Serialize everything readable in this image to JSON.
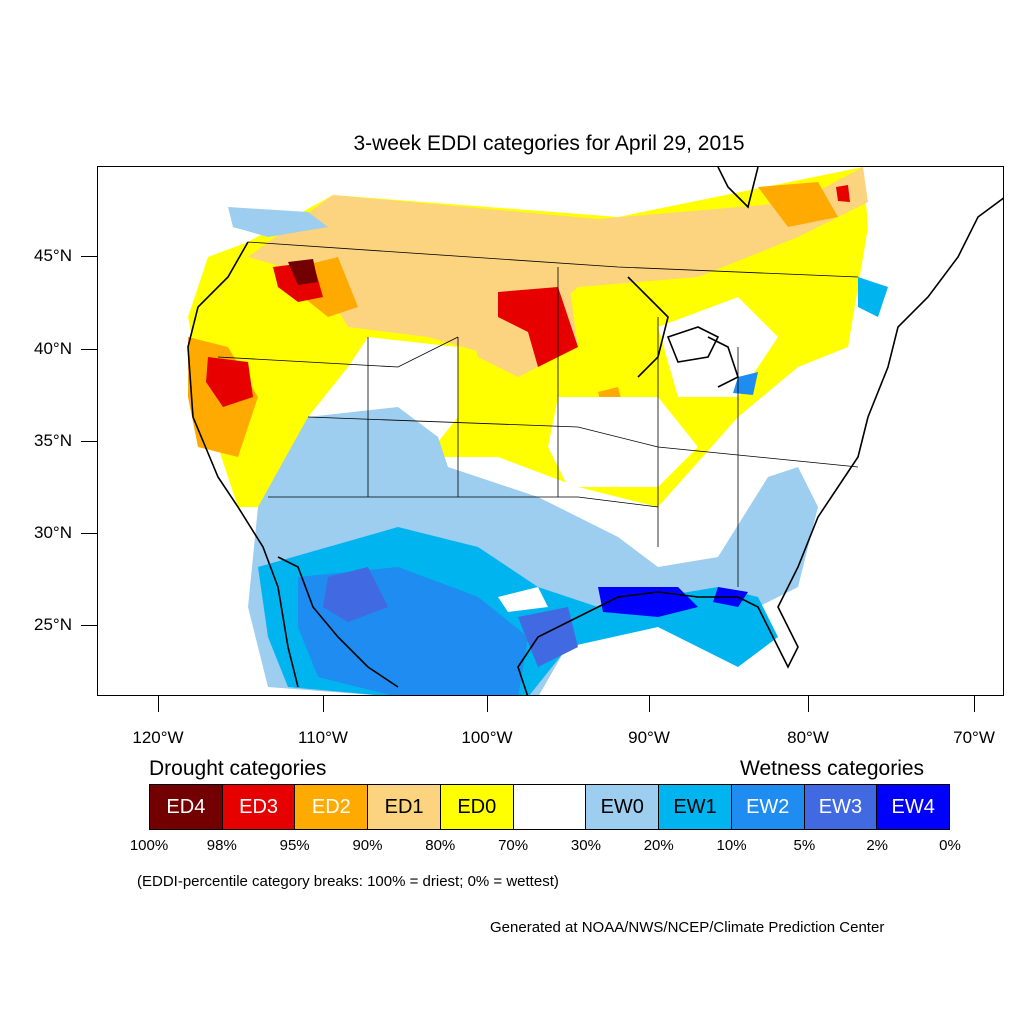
{
  "title": "3-week EDDI categories for April 29, 2015",
  "latitude_labels": [
    "45°N",
    "40°N",
    "35°N",
    "30°N",
    "25°N"
  ],
  "longitude_labels": [
    "120°W",
    "110°W",
    "100°W",
    "90°W",
    "80°W",
    "70°W"
  ],
  "legend": {
    "drought_heading": "Drought categories",
    "wetness_heading": "Wetness categories",
    "categories": [
      {
        "label": "ED4",
        "color": "#730000",
        "text_color": "#ffffff"
      },
      {
        "label": "ED3",
        "color": "#e60000",
        "text_color": "#ffffff"
      },
      {
        "label": "ED2",
        "color": "#ffaa00",
        "text_color": "#ffffff"
      },
      {
        "label": "ED1",
        "color": "#fcd37f",
        "text_color": "#000000"
      },
      {
        "label": "ED0",
        "color": "#ffff00",
        "text_color": "#000000"
      },
      {
        "label": "",
        "color": "#ffffff",
        "text_color": "#000000"
      },
      {
        "label": "EW0",
        "color": "#9dcdef",
        "text_color": "#000000"
      },
      {
        "label": "EW1",
        "color": "#00b4f0",
        "text_color": "#000000"
      },
      {
        "label": "EW2",
        "color": "#1e8cf0",
        "text_color": "#ffffff"
      },
      {
        "label": "EW3",
        "color": "#4169e1",
        "text_color": "#ffffff"
      },
      {
        "label": "EW4",
        "color": "#0000ff",
        "text_color": "#ffffff"
      }
    ],
    "breaks": [
      "100%",
      "98%",
      "95%",
      "90%",
      "80%",
      "70%",
      "30%",
      "20%",
      "10%",
      "5%",
      "2%",
      "0%"
    ]
  },
  "note": "(EDDI-percentile category breaks: 100% = driest; 0% = wettest)",
  "credit": "Generated at NOAA/NWS/NCEP/Climate Prediction Center"
}
